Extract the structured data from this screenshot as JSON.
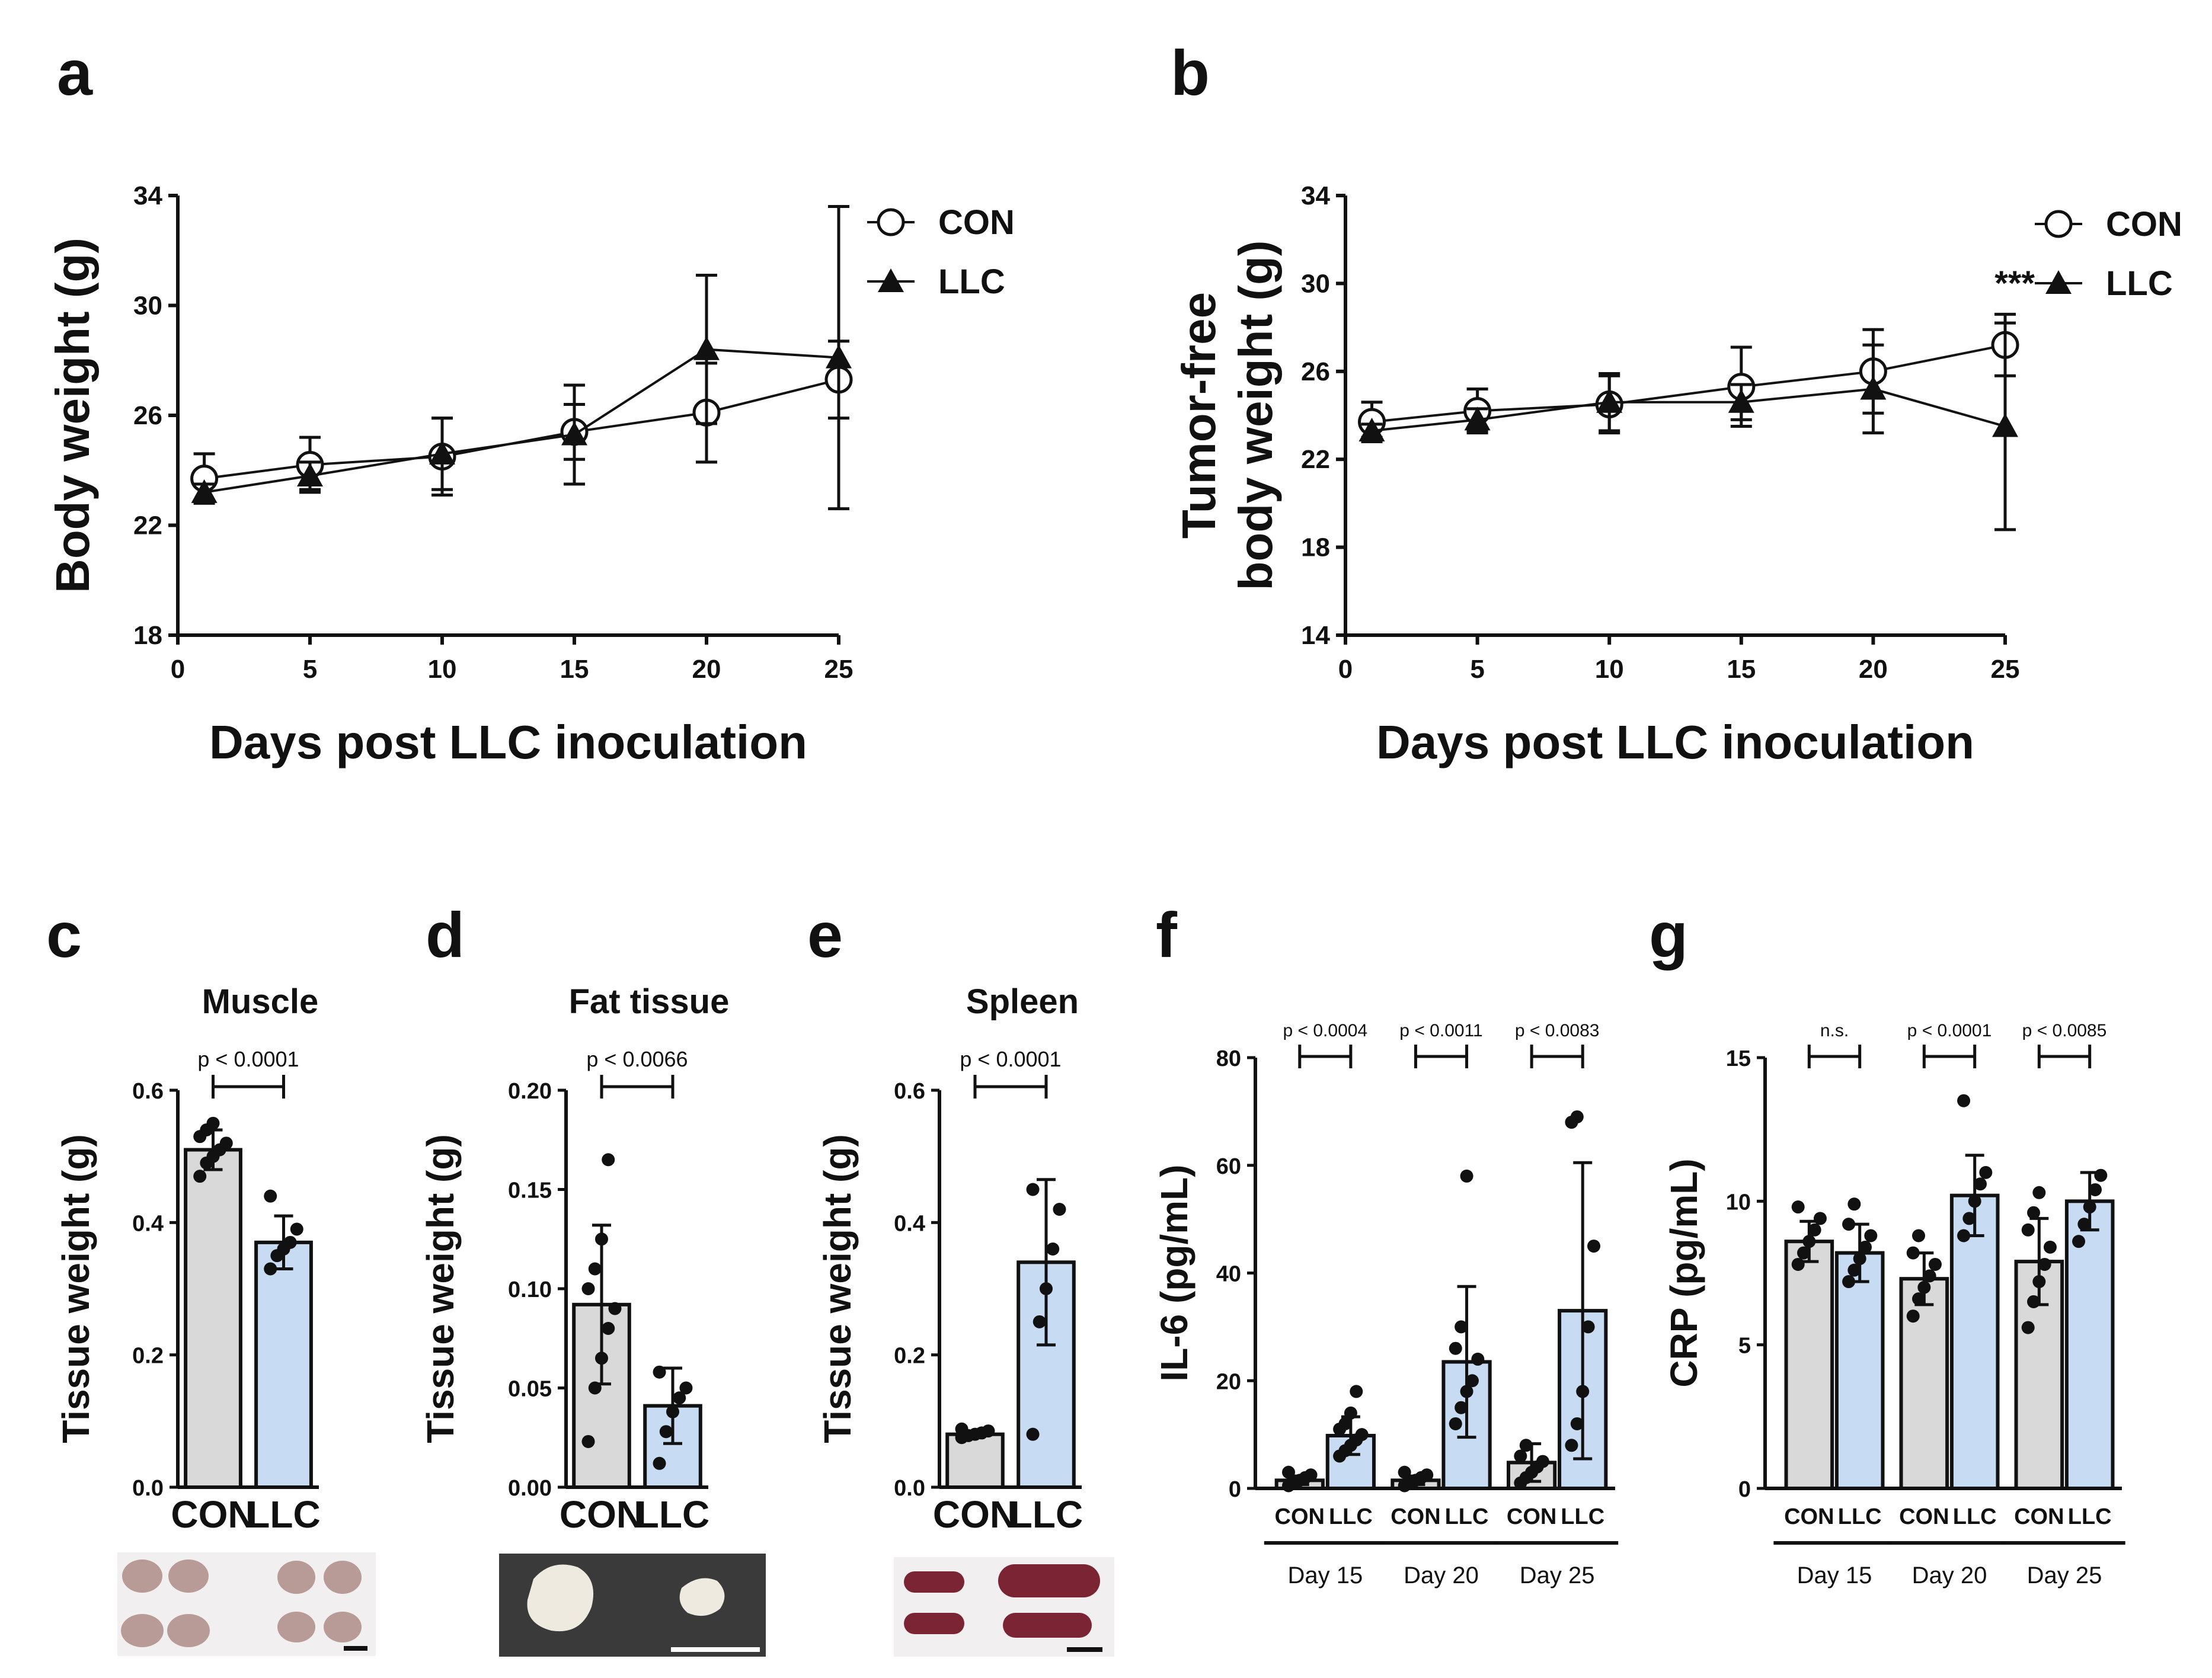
{
  "panels": {
    "a": "a",
    "b": "b",
    "c": "c",
    "d": "d",
    "e": "e",
    "f": "f",
    "g": "g"
  },
  "colors": {
    "con": "#d9d9d9",
    "llc": "#c7dbf2",
    "line": "#111111",
    "spleen": "#7a2434",
    "muscle": "#b89a96",
    "fat": "#efeae0",
    "photo_bg_fat": "#3a3a3a",
    "photo_bg": "#f1efef"
  },
  "chart_data": [
    {
      "id": "a",
      "type": "line",
      "xlabel": "Days post LLC inoculation",
      "ylabel": "Body weight (g)",
      "xlim": [
        0,
        25
      ],
      "ylim": [
        18,
        34
      ],
      "xticks": [
        0,
        5,
        10,
        15,
        20,
        25
      ],
      "yticks": [
        18,
        22,
        26,
        30,
        34
      ],
      "legend": [
        "CON",
        "LLC"
      ],
      "series": [
        {
          "name": "CON",
          "marker": "open-circle",
          "x": [
            1,
            5,
            10,
            15,
            20,
            25
          ],
          "y": [
            23.7,
            24.2,
            24.5,
            25.4,
            26.1,
            27.3
          ],
          "err": [
            0.9,
            1.0,
            1.4,
            1.0,
            1.8,
            1.4
          ]
        },
        {
          "name": "LLC",
          "marker": "filled-triangle",
          "x": [
            1,
            5,
            10,
            15,
            20,
            25
          ],
          "y": [
            23.2,
            23.8,
            24.6,
            25.3,
            28.4,
            28.1
          ],
          "err": [
            0.3,
            0.5,
            1.3,
            1.8,
            2.7,
            5.5
          ]
        }
      ]
    },
    {
      "id": "b",
      "type": "line",
      "xlabel": "Days post LLC inoculation",
      "ylabel": "Tumor-free body weight (g)",
      "ylabel_lines": [
        "Tumor-free",
        "body weight  (g)"
      ],
      "xlim": [
        0,
        25
      ],
      "ylim": [
        14,
        34
      ],
      "xticks": [
        0,
        5,
        10,
        15,
        20,
        25
      ],
      "yticks": [
        14,
        18,
        22,
        26,
        30,
        34
      ],
      "legend": [
        "CON",
        "LLC"
      ],
      "annotation": "***",
      "series": [
        {
          "name": "CON",
          "marker": "open-circle",
          "x": [
            1,
            5,
            10,
            15,
            20,
            25
          ],
          "y": [
            23.7,
            24.2,
            24.5,
            25.3,
            26.0,
            27.2
          ],
          "err": [
            0.9,
            1.0,
            1.3,
            1.8,
            1.9,
            1.4
          ]
        },
        {
          "name": "LLC",
          "marker": "filled-triangle",
          "x": [
            1,
            5,
            10,
            15,
            20,
            25
          ],
          "y": [
            23.3,
            23.8,
            24.6,
            24.6,
            25.2,
            23.5
          ],
          "err": [
            0.3,
            0.5,
            1.3,
            0.8,
            2.0,
            4.7
          ]
        }
      ]
    },
    {
      "id": "c",
      "type": "bar",
      "title": "Muscle",
      "ylabel": "Tissue weight (g)",
      "categories": [
        "CON",
        "LLC"
      ],
      "values": [
        0.51,
        0.37
      ],
      "err": [
        0.03,
        0.04
      ],
      "ylim": [
        0,
        0.6
      ],
      "yticks": [
        "0.0",
        "0.2",
        "0.4",
        "0.6"
      ],
      "ytick_values": [
        0,
        0.2,
        0.4,
        0.6
      ],
      "pvalue": "p < 0.0001",
      "points": [
        [
          0.47,
          0.49,
          0.5,
          0.51,
          0.52,
          0.53,
          0.54,
          0.55
        ],
        [
          0.33,
          0.35,
          0.36,
          0.37,
          0.39,
          0.44
        ]
      ]
    },
    {
      "id": "d",
      "type": "bar",
      "title": "Fat tissue",
      "ylabel": "Tissue weight (g)",
      "categories": [
        "CON",
        "LLC"
      ],
      "values": [
        0.092,
        0.041
      ],
      "err": [
        0.04,
        0.019
      ],
      "ylim": [
        0,
        0.2
      ],
      "yticks": [
        "0.00",
        "0.05",
        "0.10",
        "0.15",
        "0.20"
      ],
      "ytick_values": [
        0,
        0.05,
        0.1,
        0.15,
        0.2
      ],
      "pvalue": "p < 0.0066",
      "points": [
        [
          0.023,
          0.05,
          0.065,
          0.08,
          0.09,
          0.1,
          0.11,
          0.125,
          0.165
        ],
        [
          0.012,
          0.028,
          0.038,
          0.045,
          0.05,
          0.058
        ]
      ]
    },
    {
      "id": "e",
      "type": "bar",
      "title": "Spleen",
      "ylabel": "Tissue weight (g)",
      "categories": [
        "CON",
        "LLC"
      ],
      "values": [
        0.08,
        0.34
      ],
      "err": [
        0.005,
        0.125
      ],
      "ylim": [
        0,
        0.6
      ],
      "yticks": [
        "0.0",
        "0.2",
        "0.4",
        "0.6"
      ],
      "ytick_values": [
        0,
        0.2,
        0.4,
        0.6
      ],
      "pvalue": "p < 0.0001",
      "points": [
        [
          0.075,
          0.078,
          0.08,
          0.082,
          0.085,
          0.088
        ],
        [
          0.08,
          0.25,
          0.3,
          0.36,
          0.42,
          0.45
        ]
      ]
    },
    {
      "id": "f",
      "type": "bar",
      "ylabel": "IL-6 (pg/mL)",
      "categories": [
        "CON",
        "LLC",
        "CON",
        "LLC",
        "CON",
        "LLC"
      ],
      "groups": [
        "Day 15",
        "Day 20",
        "Day 25"
      ],
      "values": [
        1.5,
        9.8,
        1.5,
        23.5,
        4.8,
        33.0
      ],
      "err": [
        0.8,
        3.5,
        0.8,
        14.0,
        3.5,
        27.5
      ],
      "ylim": [
        0,
        80
      ],
      "yticks": [
        "0",
        "20",
        "40",
        "60",
        "80"
      ],
      "ytick_values": [
        0,
        20,
        40,
        60,
        80
      ],
      "pvalues": [
        "p < 0.0004",
        "p < 0.0011",
        "p < 0.0083"
      ],
      "points": [
        [
          0.5,
          1.0,
          1.5,
          2.0,
          2.5,
          3.0
        ],
        [
          6,
          7,
          8,
          9,
          10,
          11,
          12,
          14,
          18
        ],
        [
          0.5,
          1.0,
          1.5,
          2.0,
          2.5,
          3.0
        ],
        [
          12,
          15,
          18,
          20,
          24,
          26,
          30,
          58
        ],
        [
          1,
          2,
          3,
          4,
          5,
          6,
          8
        ],
        [
          8,
          12,
          18,
          30,
          45,
          68,
          69
        ]
      ]
    },
    {
      "id": "g",
      "type": "bar",
      "ylabel": "CRP (pg/mL)",
      "categories": [
        "CON",
        "LLC",
        "CON",
        "LLC",
        "CON",
        "LLC"
      ],
      "groups": [
        "Day 15",
        "Day 20",
        "Day 25"
      ],
      "values": [
        8.6,
        8.2,
        7.3,
        10.2,
        7.9,
        10.0
      ],
      "err": [
        0.7,
        1.0,
        0.9,
        1.4,
        1.5,
        1.0
      ],
      "ylim": [
        0,
        15
      ],
      "yticks": [
        "0",
        "5",
        "10",
        "15"
      ],
      "ytick_values": [
        0,
        5,
        10,
        15
      ],
      "pvalues": [
        "n.s.",
        "p < 0.0001",
        "p < 0.0085"
      ],
      "points": [
        [
          7.8,
          8.2,
          8.6,
          9.0,
          9.4,
          9.8
        ],
        [
          7.2,
          7.6,
          8.0,
          8.4,
          8.8,
          9.2,
          9.9
        ],
        [
          6.0,
          6.6,
          7.0,
          7.4,
          7.8,
          8.2,
          8.8
        ],
        [
          8.8,
          9.4,
          10.0,
          10.6,
          11.0,
          13.5
        ],
        [
          5.6,
          6.5,
          7.2,
          7.8,
          8.4,
          9.0,
          9.6,
          10.3
        ],
        [
          8.6,
          9.2,
          9.8,
          10.4,
          10.9
        ]
      ]
    }
  ],
  "photos": [
    {
      "panel": "c",
      "subject": "muscle"
    },
    {
      "panel": "d",
      "subject": "fat tissue"
    },
    {
      "panel": "e",
      "subject": "spleen"
    }
  ]
}
